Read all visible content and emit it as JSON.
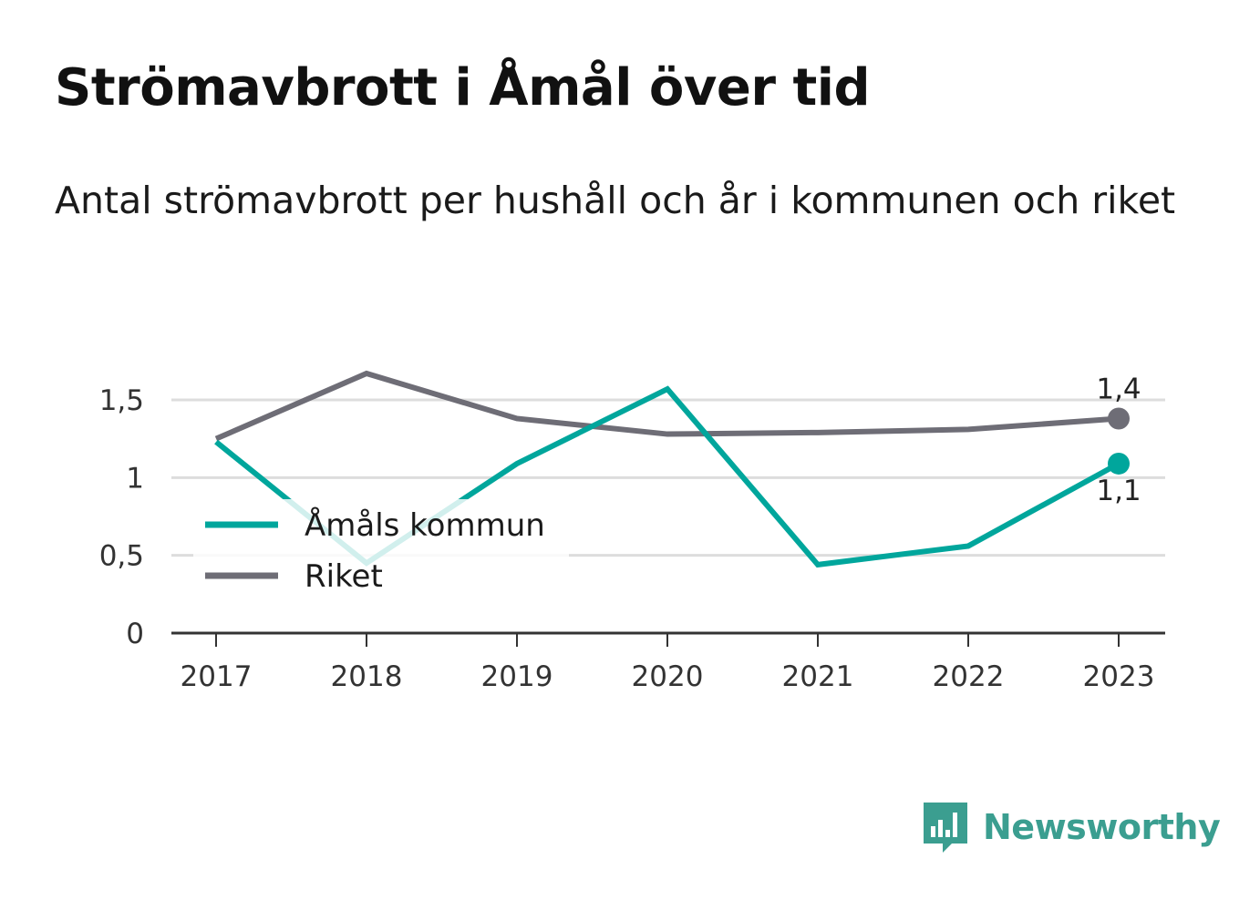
{
  "title": "Strömavbrott i Åmål över tid",
  "subtitle": "Antal strömavbrott per hushåll och år i kommunen och riket",
  "logo": {
    "text": "Newsworthy"
  },
  "colors": {
    "kommun": "#00a69c",
    "riket": "#6e6d76",
    "grid": "#dddddd",
    "axis": "#333333",
    "brand": "#3b9e90"
  },
  "chart_data": {
    "type": "line",
    "title": "Strömavbrott i Åmål över tid",
    "subtitle": "Antal strömavbrott per hushåll och år i kommunen och riket",
    "x": [
      "2017",
      "2018",
      "2019",
      "2020",
      "2021",
      "2022",
      "2023"
    ],
    "series": [
      {
        "name": "Åmåls kommun",
        "values": [
          1.23,
          0.45,
          1.09,
          1.57,
          0.44,
          0.56,
          1.09
        ],
        "end_label": "1,1"
      },
      {
        "name": "Riket",
        "values": [
          1.25,
          1.67,
          1.38,
          1.28,
          1.29,
          1.31,
          1.38
        ],
        "end_label": "1,4"
      }
    ],
    "ylim": [
      0,
      1.5
    ],
    "yticks": [
      0,
      0.5,
      1,
      1.5
    ],
    "ytick_labels": [
      "0",
      "0,5",
      "1",
      "1,5"
    ],
    "legend": "inside-left",
    "grid": true
  }
}
